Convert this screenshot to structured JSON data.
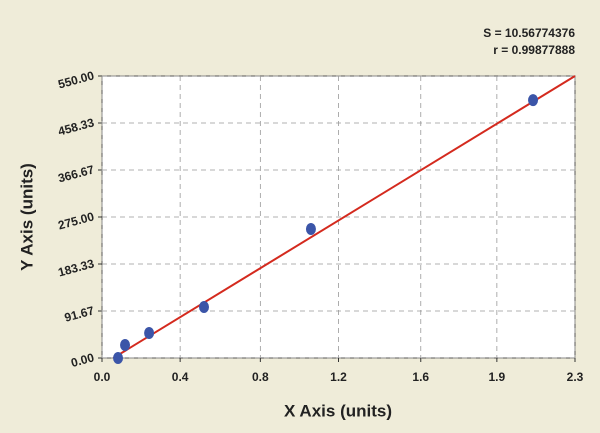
{
  "chart_data": {
    "type": "scatter",
    "x_label": "X Axis (units)",
    "y_label": "Y Axis (units)",
    "annotations": [
      "S = 10.56774376",
      "r = 0.99877888"
    ],
    "series": [
      {
        "color": "#3b55a8",
        "x": [
          0.078,
          0.112,
          0.229,
          0.496,
          1.016,
          2.096
        ],
        "values": [
          0,
          25.4,
          48.8,
          99.5,
          251.6,
          503
        ]
      }
    ],
    "fit_line": {
      "color": "#d42a1e",
      "x": [
        0.055,
        2.3
      ],
      "values": [
        0,
        550
      ]
    },
    "xlim": [
      0,
      2.3
    ],
    "ylim": [
      0,
      550
    ],
    "xticks": [
      {
        "value": 0,
        "label": "0.0"
      },
      {
        "value": 0.38,
        "label": "0.4"
      },
      {
        "value": 0.77,
        "label": "0.8"
      },
      {
        "value": 1.15,
        "label": "1.2"
      },
      {
        "value": 1.55,
        "label": "1.6"
      },
      {
        "value": 1.92,
        "label": "1.9"
      },
      2.3
    ],
    "yticks": [
      {
        "value": 0,
        "label": "0.00"
      },
      91.67,
      183.33,
      {
        "value": 275,
        "label": "275.00"
      },
      366.67,
      458.33,
      {
        "value": 550,
        "label": "550.00"
      }
    ],
    "grid": true
  }
}
